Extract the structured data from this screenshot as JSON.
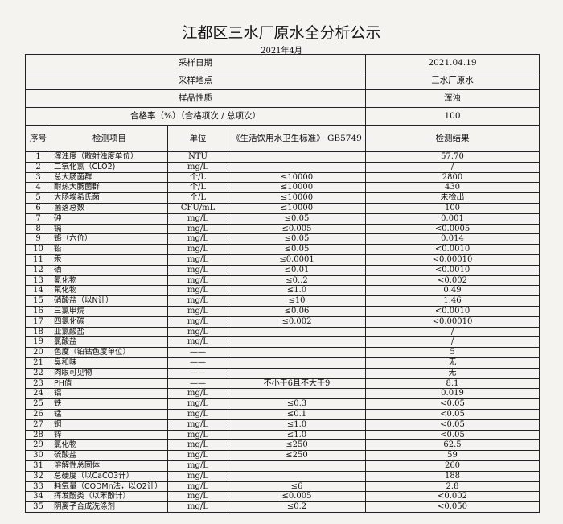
{
  "title": "江都区三水厂原水全分析公示",
  "subtitle": "2021年4月",
  "info": [
    {
      "label": "采样日期",
      "value": "2021.04.19"
    },
    {
      "label": "采样地点",
      "value": "三水厂原水"
    },
    {
      "label": "样品性质",
      "value": "浑浊"
    },
    {
      "label": "合格率（%）（合格项次 / 总项次）",
      "value": "100"
    }
  ],
  "headers": [
    "序号",
    "检测项目",
    "单位",
    "《生活饮用水卫生标准》 GB5749",
    "检测结果"
  ],
  "rows": [
    [
      "1",
      "浑浊度（散射浊度单位）",
      "NTU",
      "",
      "57.70"
    ],
    [
      "2",
      "二氧化氯（CLO2)",
      "mg/L",
      "",
      "/"
    ],
    [
      "3",
      "总大肠菌群",
      "个/L",
      "≤10000",
      "2800"
    ],
    [
      "4",
      "耐热大肠菌群",
      "个/L",
      "≤10000",
      "430"
    ],
    [
      "5",
      "大肠埃希氏菌",
      "个/L",
      "≤10000",
      "未检出"
    ],
    [
      "6",
      "菌落总数",
      "CFU/mL",
      "≤10000",
      "100"
    ],
    [
      "7",
      "砷",
      "mg/L",
      "≤0.05",
      "0.001"
    ],
    [
      "8",
      "镉",
      "mg/L",
      "≤0.005",
      "<0.0005"
    ],
    [
      "9",
      "铬（六价）",
      "mg/L",
      "≤0.05",
      "0.014"
    ],
    [
      "10",
      "铅",
      "mg/L",
      "≤0.05",
      "<0.0010"
    ],
    [
      "11",
      "汞",
      "mg/L",
      "≤0.0001",
      "<0.00010"
    ],
    [
      "12",
      "硒",
      "mg/L",
      "≤0.01",
      "<0.0010"
    ],
    [
      "13",
      "氰化物",
      "mg/L",
      "≤0..2",
      "<0.002"
    ],
    [
      "14",
      "氟化物",
      "mg/L",
      "≤1.0",
      "0.49"
    ],
    [
      "15",
      "硝酸盐（以N计）",
      "mg/L",
      "≤10",
      "1.46"
    ],
    [
      "16",
      "三氯甲烷",
      "mg/L",
      "≤0.06",
      "<0.0010"
    ],
    [
      "17",
      "四氯化碳",
      "mg/L",
      "≤0.002",
      "<0.00010"
    ],
    [
      "18",
      "亚氯酸盐",
      "mg/L",
      "",
      "/"
    ],
    [
      "19",
      "氯酸盐",
      "mg/L",
      "",
      "/"
    ],
    [
      "20",
      "色度（铂钴色度单位）",
      "——",
      "",
      "5"
    ],
    [
      "21",
      "臭和味",
      "——",
      "",
      "无"
    ],
    [
      "22",
      "肉眼可见物",
      "——",
      "",
      "无"
    ],
    [
      "23",
      "PH值",
      "——",
      "不小于6且不大于9",
      "8.1"
    ],
    [
      "24",
      "铝",
      "mg/L",
      "",
      "0.019"
    ],
    [
      "25",
      "铁",
      "mg/L",
      "≤0.3",
      "<0.05"
    ],
    [
      "26",
      "锰",
      "mg/L",
      "≤0.1",
      "<0.05"
    ],
    [
      "27",
      "铜",
      "mg/L",
      "≤1.0",
      "<0.05"
    ],
    [
      "28",
      "锌",
      "mg/L",
      "≤1.0",
      "<0.05"
    ],
    [
      "29",
      "氯化物",
      "mg/L",
      "≤250",
      "62.5"
    ],
    [
      "30",
      "硫酸盐",
      "mg/L",
      "≤250",
      "59"
    ],
    [
      "31",
      "溶解性总固体",
      "mg/L",
      "",
      "260"
    ],
    [
      "32",
      "总硬度（以CaCO3计）",
      "mg/L",
      "",
      "188"
    ],
    [
      "33",
      "耗氧量（CODMn法，以O2计）",
      "mg/L",
      "≤6",
      "2.8"
    ],
    [
      "34",
      "挥发酚类（以苯酚计）",
      "mg/L",
      "≤0.005",
      "<0.002"
    ],
    [
      "35",
      "阴离子合成洗涤剂",
      "mg/L",
      "≤0.2",
      "<0.050"
    ]
  ]
}
